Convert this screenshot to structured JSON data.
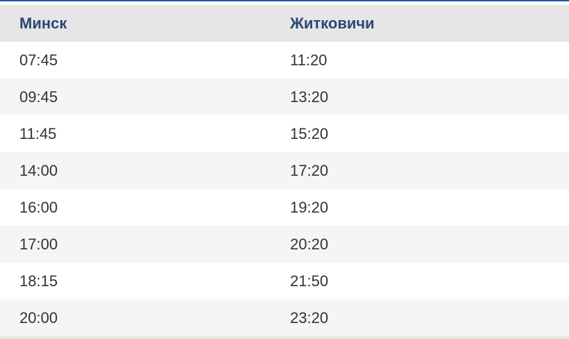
{
  "table": {
    "headers": [
      "Минск",
      "Житковичи"
    ],
    "rows": [
      [
        "07:45",
        "11:20"
      ],
      [
        "09:45",
        "13:20"
      ],
      [
        "11:45",
        "15:20"
      ],
      [
        "14:00",
        "17:20"
      ],
      [
        "16:00",
        "19:20"
      ],
      [
        "17:00",
        "20:20"
      ],
      [
        "18:15",
        "21:50"
      ],
      [
        "20:00",
        "23:20"
      ]
    ]
  }
}
